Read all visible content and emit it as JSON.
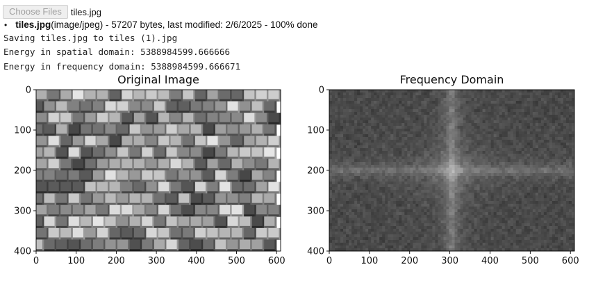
{
  "upload": {
    "choose_files_label": "Choose Files",
    "selected_file": "tiles.jpg"
  },
  "file_info": {
    "name": "tiles.jpg",
    "details": "(image/jpeg) - 57207 bytes, last modified: 2/6/2025 - 100% done"
  },
  "output_lines": [
    "Saving tiles.jpg to tiles (1).jpg",
    "Energy in spatial domain: 5388984599.666666",
    "Energy in frequency domain: 5388984599.666671"
  ],
  "chart_data": [
    {
      "type": "heatmap",
      "title": "Original Image",
      "xlim": [
        0,
        610
      ],
      "ylim": [
        400,
        0
      ],
      "xticks": [
        0,
        100,
        200,
        300,
        400,
        500,
        600
      ],
      "yticks": [
        0,
        100,
        200,
        300,
        400
      ],
      "colormap": "gray",
      "content": "grayscale photo of 3D cube tiles"
    },
    {
      "type": "heatmap",
      "title": "Frequency Domain",
      "xlim": [
        0,
        610
      ],
      "ylim": [
        400,
        0
      ],
      "xticks": [
        0,
        100,
        200,
        300,
        400,
        500,
        600
      ],
      "yticks": [
        0,
        100,
        200,
        300,
        400
      ],
      "colormap": "gray",
      "content": "log-magnitude FFT spectrum"
    }
  ]
}
